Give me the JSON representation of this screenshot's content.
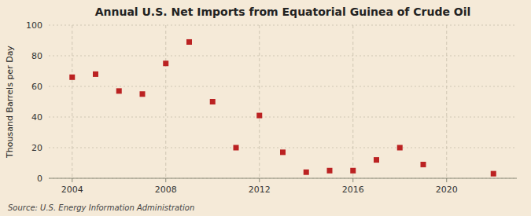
{
  "chart_data": {
    "type": "scatter",
    "title": "Annual U.S. Net Imports from Equatorial Guinea of Crude Oil",
    "ylabel": "Thousand Barrels per Day",
    "annotations": [
      "Source: U.S. Energy Information Administration"
    ],
    "x": [
      2004,
      2005,
      2006,
      2007,
      2008,
      2009,
      2010,
      2011,
      2012,
      2013,
      2014,
      2015,
      2016,
      2017,
      2018,
      2019,
      2022
    ],
    "values": [
      66,
      68,
      57,
      55,
      75,
      89,
      50,
      20,
      41,
      17,
      4,
      5,
      5,
      12,
      20,
      9,
      3
    ],
    "color": "#bb2222",
    "marker": "square",
    "xlim": [
      2003.0,
      2023.0
    ],
    "xticks": [
      2004,
      2008,
      2012,
      2016,
      2020
    ],
    "ylim": [
      0,
      100
    ],
    "yticks": [
      0,
      20,
      40,
      60,
      80,
      100
    ],
    "grid": true
  }
}
